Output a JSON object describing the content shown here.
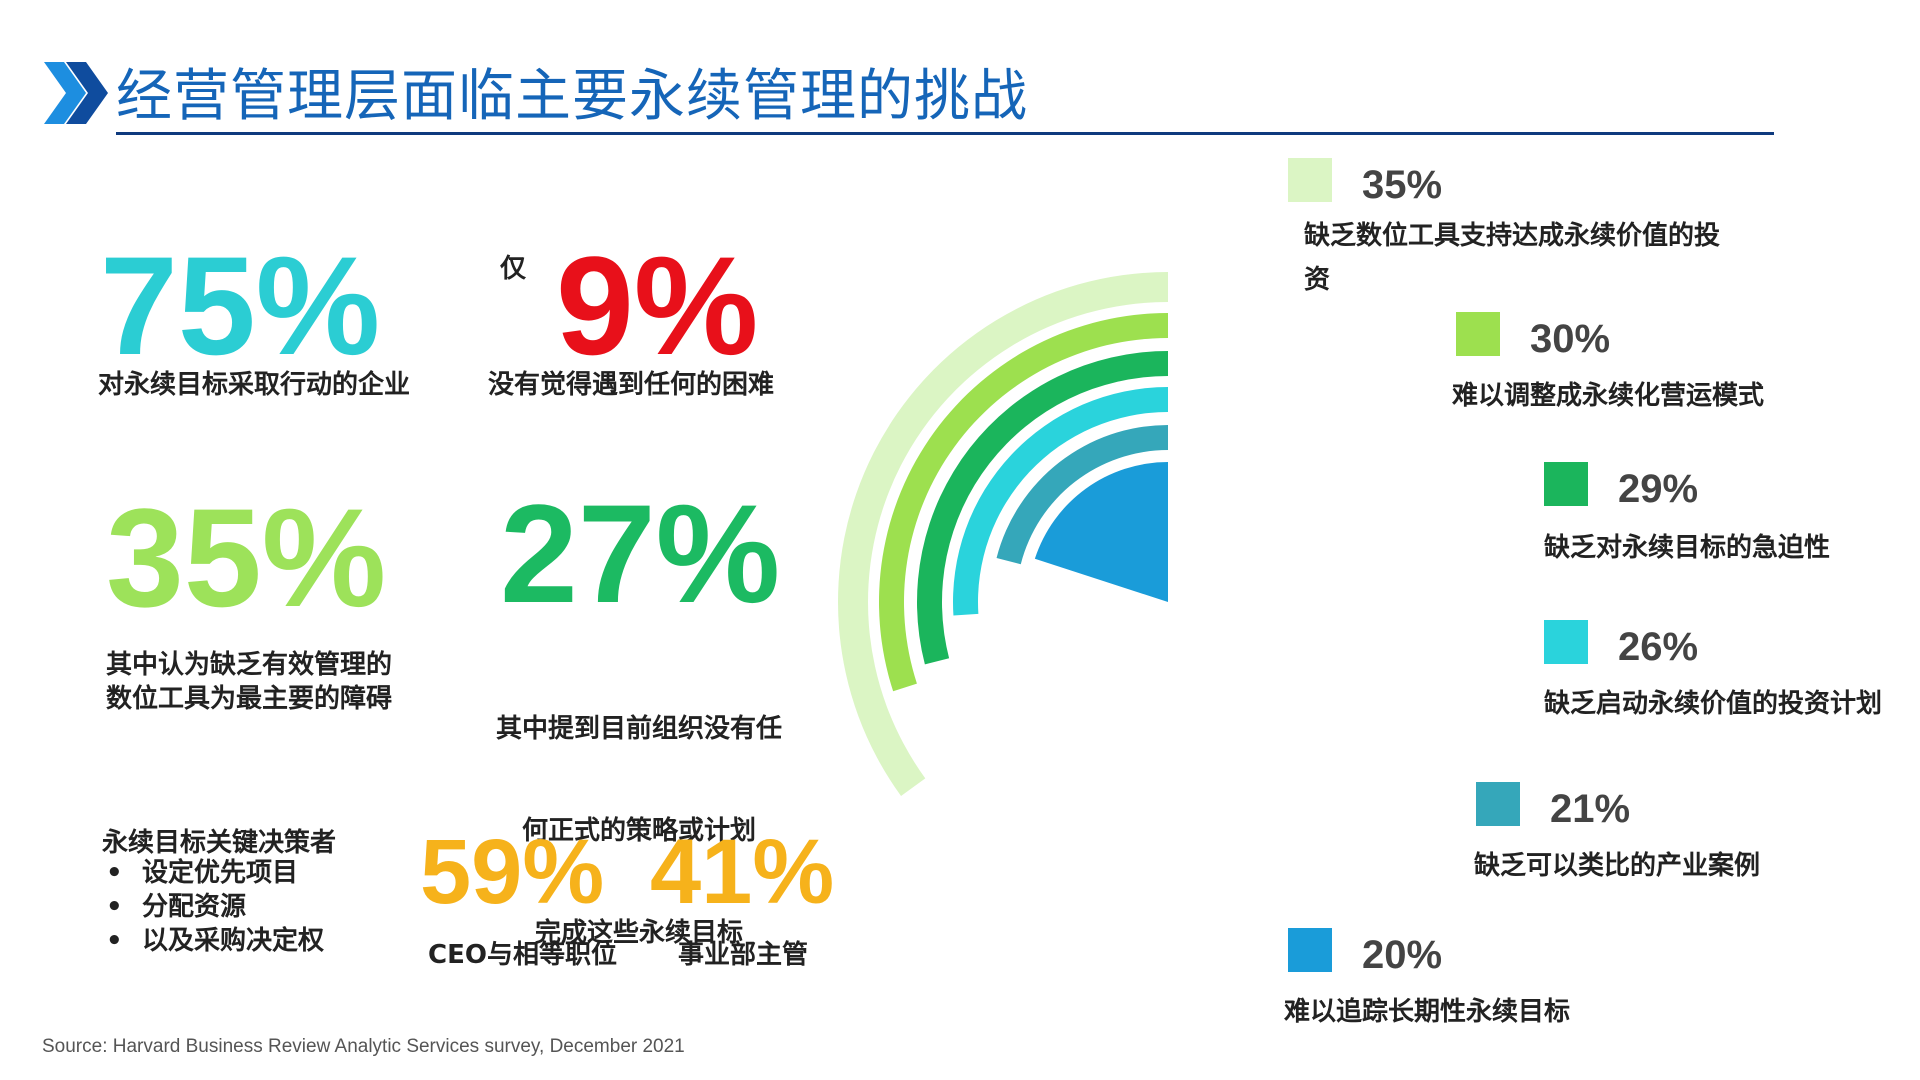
{
  "title": "经营管理层面临主要永续管理的挑战",
  "stats": {
    "s75": {
      "value": "75%",
      "caption": "对永续目标采取行动的企业"
    },
    "s9": {
      "prefix": "仅",
      "value": "9%",
      "caption": "没有觉得遇到任何的困难"
    },
    "s35": {
      "value": "35%",
      "caption_lines": [
        "其中认为缺乏有效管理的",
        "数位工具为最主要的障碍"
      ]
    },
    "s27": {
      "value": "27%",
      "caption_lines": [
        "其中提到目前组织没有任",
        "何正式的策略或计划",
        "完成这些永续目标"
      ]
    }
  },
  "decision_makers": {
    "title": "永续目标关键决策者",
    "items": [
      "设定优先项目",
      "分配资源",
      "以及采购决定权"
    ]
  },
  "roles": [
    {
      "value": "59%",
      "label": "CEO与相等职位"
    },
    {
      "value": "41%",
      "label": "事业部主管"
    }
  ],
  "source": "Source: Harvard Business Review Analytic Services survey, December 2021",
  "chart_data": {
    "type": "radial-bar",
    "max": 100,
    "series": [
      {
        "label": "缺乏数位工具支持达成永续价值的投资",
        "value": 35,
        "color": "#dbf5c4"
      },
      {
        "label": "难以调整成永续化营运模式",
        "value": 30,
        "color": "#9de04f"
      },
      {
        "label": "缺乏对永续目标的急迫性",
        "value": 29,
        "color": "#1bb55c"
      },
      {
        "label": "缺乏启动永续价值的投资计划",
        "value": 26,
        "color": "#2ad3dc"
      },
      {
        "label": "缺乏可以类比的产业案例",
        "value": 21,
        "color": "#35a7ba"
      },
      {
        "label": "难以追踪长期性永续目标",
        "value": 20,
        "color": "#1a9cd9"
      }
    ],
    "legend_text": [
      {
        "value": "35%",
        "lines": [
          "缺乏数位工具支持达成永续价值的投",
          "资"
        ]
      },
      {
        "value": "30%",
        "lines": [
          "难以调整成永续化营运模式"
        ]
      },
      {
        "value": "29%",
        "lines": [
          "缺乏对永续目标的急迫性"
        ]
      },
      {
        "value": "26%",
        "lines": [
          "缺乏启动永续价值的投资计划"
        ]
      },
      {
        "value": "21%",
        "lines": [
          "缺乏可以类比的产业案例"
        ]
      },
      {
        "value": "20%",
        "lines": [
          "难以追踪长期性永续目标"
        ]
      }
    ]
  }
}
